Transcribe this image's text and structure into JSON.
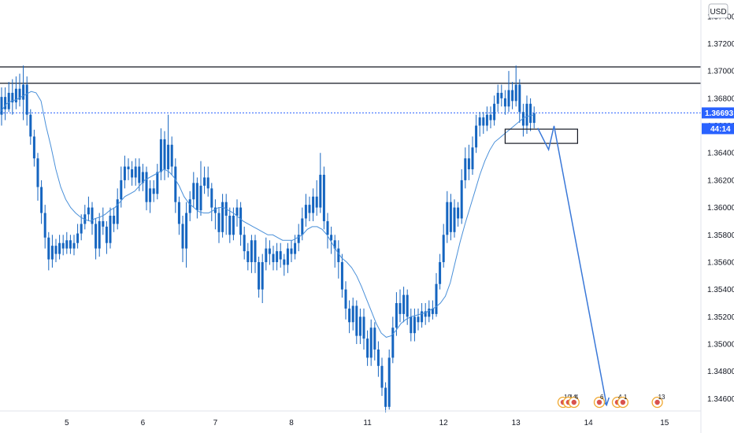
{
  "currency_label": "USD",
  "current_price_label": "1.36693",
  "countdown_label": "44:14",
  "colors": {
    "candle": "#1565c0",
    "ma_line": "#4a90d9",
    "arrow": "#3a78d8",
    "resistance": "#131722",
    "price_line": "#2962ff",
    "background": "#ffffff",
    "axis_text": "#131722",
    "event_badge": "#f0a830"
  },
  "event_badges": [
    {
      "label": "10"
    },
    {
      "label": "14"
    },
    {
      "label": "4"
    },
    {
      "label": "6"
    },
    {
      "label": "4"
    },
    {
      "label": "1"
    },
    {
      "label": "13"
    }
  ],
  "chart_data": {
    "type": "candlestick",
    "ylim": [
      1.3451,
      1.3752
    ],
    "y_ticks": [
      "1.37400",
      "1.37200",
      "1.37000",
      "1.36800",
      "1.36600",
      "1.36400",
      "1.36200",
      "1.36000",
      "1.35800",
      "1.35600",
      "1.35400",
      "1.35200",
      "1.35000",
      "1.34800",
      "1.34600"
    ],
    "y_tick_values": [
      1.374,
      1.372,
      1.37,
      1.368,
      1.366,
      1.364,
      1.362,
      1.36,
      1.358,
      1.356,
      1.354,
      1.352,
      1.35,
      1.348,
      1.346
    ],
    "x_ticks": [
      "5",
      "6",
      "7",
      "8",
      "11",
      "12",
      "13",
      "14",
      "15"
    ],
    "x_tick_index": [
      18,
      39,
      59,
      80,
      101,
      122,
      142,
      162,
      183
    ],
    "bar_count": 200,
    "resistance_levels": [
      1.3703,
      1.3691
    ],
    "current_price": 1.36693,
    "ma_values": [
      1.3671,
      1.3676,
      1.3678,
      1.3679,
      1.3681,
      1.3683,
      1.3685,
      1.3684,
      1.3678,
      1.366,
      1.3645,
      1.3628,
      1.3615,
      1.3606,
      1.36,
      1.3596,
      1.3593,
      1.3591,
      1.359,
      1.3592,
      1.3593,
      1.3595,
      1.3598,
      1.36,
      1.3604,
      1.3608,
      1.361,
      1.3612,
      1.3616,
      1.362,
      1.3622,
      1.3624,
      1.3626,
      1.3628,
      1.3626,
      1.3622,
      1.3616,
      1.3608,
      1.3603,
      1.36,
      1.3597,
      1.3596,
      1.3596,
      1.3598,
      1.36,
      1.36,
      1.3598,
      1.3596,
      1.3593,
      1.359,
      1.3588,
      1.3586,
      1.3584,
      1.3582,
      1.358,
      1.358,
      1.3578,
      1.3576,
      1.3576,
      1.3576,
      1.3578,
      1.358,
      1.3584,
      1.3586,
      1.3586,
      1.3584,
      1.358,
      1.3574,
      1.3568,
      1.3563,
      1.356,
      1.3556,
      1.355,
      1.3542,
      1.3533,
      1.3524,
      1.3515,
      1.3508,
      1.3505,
      1.3506,
      1.351,
      1.3515,
      1.3518,
      1.352,
      1.3521,
      1.3522,
      1.3523,
      1.3525,
      1.3527,
      1.353,
      1.3535,
      1.3545,
      1.356,
      1.3575,
      1.3588,
      1.36,
      1.3612,
      1.3624,
      1.3634,
      1.3642,
      1.3648,
      1.3651,
      1.3654,
      1.3657,
      1.366,
      1.3663,
      1.3666,
      1.3667,
      1.3668
    ],
    "candles": [
      [
        1.3668,
        1.3681,
        1.3688,
        1.366
      ],
      [
        1.3681,
        1.3672,
        1.3688,
        1.3664
      ],
      [
        1.3672,
        1.3684,
        1.3692,
        1.367
      ],
      [
        1.3684,
        1.3677,
        1.3694,
        1.3668
      ],
      [
        1.3677,
        1.3687,
        1.3696,
        1.3672
      ],
      [
        1.3687,
        1.3679,
        1.3698,
        1.3674
      ],
      [
        1.3679,
        1.369,
        1.3704,
        1.3664
      ],
      [
        1.369,
        1.3668,
        1.3696,
        1.366
      ],
      [
        1.3668,
        1.3652,
        1.3672,
        1.3646
      ],
      [
        1.3652,
        1.3636,
        1.3657,
        1.363
      ],
      [
        1.3636,
        1.3615,
        1.364,
        1.3605
      ],
      [
        1.3615,
        1.3596,
        1.362,
        1.3588
      ],
      [
        1.3596,
        1.3578,
        1.3602,
        1.357
      ],
      [
        1.3578,
        1.3562,
        1.3582,
        1.3554
      ],
      [
        1.3562,
        1.3572,
        1.358,
        1.3556
      ],
      [
        1.3572,
        1.3566,
        1.3577,
        1.356
      ],
      [
        1.3566,
        1.3574,
        1.358,
        1.3562
      ],
      [
        1.3574,
        1.357,
        1.358,
        1.3565
      ],
      [
        1.357,
        1.3576,
        1.3582,
        1.3566
      ],
      [
        1.3576,
        1.357,
        1.358,
        1.3566
      ],
      [
        1.357,
        1.3574,
        1.358,
        1.3565
      ],
      [
        1.3574,
        1.3581,
        1.3588,
        1.357
      ],
      [
        1.3581,
        1.3588,
        1.3595,
        1.3576
      ],
      [
        1.3588,
        1.3595,
        1.3602,
        1.3584
      ],
      [
        1.3595,
        1.36,
        1.3608,
        1.359
      ],
      [
        1.36,
        1.3588,
        1.3604,
        1.358
      ],
      [
        1.3588,
        1.357,
        1.3592,
        1.3562
      ],
      [
        1.357,
        1.359,
        1.3596,
        1.3564
      ],
      [
        1.359,
        1.3586,
        1.36,
        1.358
      ],
      [
        1.3586,
        1.3574,
        1.359,
        1.3566
      ],
      [
        1.3574,
        1.3594,
        1.36,
        1.357
      ],
      [
        1.3594,
        1.3588,
        1.36,
        1.3582
      ],
      [
        1.3588,
        1.3606,
        1.3614,
        1.3584
      ],
      [
        1.3606,
        1.362,
        1.363,
        1.36
      ],
      [
        1.362,
        1.363,
        1.3638,
        1.3614
      ],
      [
        1.363,
        1.3628,
        1.3636,
        1.362
      ],
      [
        1.3628,
        1.3622,
        1.3634,
        1.3616
      ],
      [
        1.3622,
        1.363,
        1.3636,
        1.3616
      ],
      [
        1.363,
        1.3618,
        1.3636,
        1.3612
      ],
      [
        1.3618,
        1.3626,
        1.3632,
        1.3612
      ],
      [
        1.3626,
        1.3604,
        1.363,
        1.3598
      ],
      [
        1.3604,
        1.3614,
        1.362,
        1.3596
      ],
      [
        1.3614,
        1.361,
        1.362,
        1.3604
      ],
      [
        1.361,
        1.3626,
        1.3632,
        1.3606
      ],
      [
        1.3626,
        1.365,
        1.3658,
        1.362
      ],
      [
        1.365,
        1.3628,
        1.3656,
        1.362
      ],
      [
        1.3628,
        1.3646,
        1.3668,
        1.3622
      ],
      [
        1.3646,
        1.363,
        1.3652,
        1.3624
      ],
      [
        1.363,
        1.3604,
        1.3636,
        1.3596
      ],
      [
        1.3604,
        1.3588,
        1.3608,
        1.358
      ],
      [
        1.3588,
        1.357,
        1.3594,
        1.356
      ],
      [
        1.357,
        1.3596,
        1.3604,
        1.3556
      ],
      [
        1.3596,
        1.3606,
        1.3612,
        1.359
      ],
      [
        1.3606,
        1.3618,
        1.3626,
        1.36
      ],
      [
        1.3618,
        1.3598,
        1.3622,
        1.3592
      ],
      [
        1.3598,
        1.3616,
        1.3634,
        1.3594
      ],
      [
        1.3616,
        1.3622,
        1.363,
        1.361
      ],
      [
        1.3622,
        1.3614,
        1.363,
        1.3608
      ],
      [
        1.3614,
        1.36,
        1.3618,
        1.359
      ],
      [
        1.36,
        1.3596,
        1.3606,
        1.3584
      ],
      [
        1.3596,
        1.3582,
        1.36,
        1.3574
      ],
      [
        1.3582,
        1.3604,
        1.361,
        1.3578
      ],
      [
        1.3604,
        1.3594,
        1.361,
        1.358
      ],
      [
        1.3594,
        1.358,
        1.36,
        1.3574
      ],
      [
        1.358,
        1.3594,
        1.36,
        1.3576
      ],
      [
        1.3594,
        1.36,
        1.3606,
        1.3586
      ],
      [
        1.36,
        1.358,
        1.3604,
        1.3572
      ],
      [
        1.358,
        1.3568,
        1.3586,
        1.3562
      ],
      [
        1.3568,
        1.356,
        1.3574,
        1.3554
      ],
      [
        1.356,
        1.3576,
        1.358,
        1.3552
      ],
      [
        1.3576,
        1.356,
        1.358,
        1.3552
      ],
      [
        1.356,
        1.354,
        1.3564,
        1.3534
      ],
      [
        1.354,
        1.356,
        1.3566,
        1.353
      ],
      [
        1.356,
        1.357,
        1.3578,
        1.3554
      ],
      [
        1.357,
        1.3566,
        1.3576,
        1.3558
      ],
      [
        1.3566,
        1.356,
        1.3572,
        1.3554
      ],
      [
        1.356,
        1.3568,
        1.3574,
        1.3554
      ],
      [
        1.3568,
        1.3562,
        1.3574,
        1.3556
      ],
      [
        1.3562,
        1.3558,
        1.3566,
        1.355
      ],
      [
        1.3558,
        1.357,
        1.3574,
        1.3552
      ],
      [
        1.357,
        1.3566,
        1.3576,
        1.356
      ],
      [
        1.3566,
        1.3574,
        1.358,
        1.3562
      ],
      [
        1.3574,
        1.358,
        1.3588,
        1.3568
      ],
      [
        1.358,
        1.3592,
        1.36,
        1.3576
      ],
      [
        1.3592,
        1.3602,
        1.361,
        1.3586
      ],
      [
        1.3602,
        1.3596,
        1.3608,
        1.359
      ],
      [
        1.3596,
        1.3608,
        1.3614,
        1.359
      ],
      [
        1.3608,
        1.36,
        1.362,
        1.3594
      ],
      [
        1.36,
        1.3624,
        1.364,
        1.3596
      ],
      [
        1.3624,
        1.359,
        1.363,
        1.3584
      ],
      [
        1.359,
        1.358,
        1.3596,
        1.357
      ],
      [
        1.358,
        1.3576,
        1.3586,
        1.3566
      ],
      [
        1.3576,
        1.357,
        1.358,
        1.3556
      ],
      [
        1.357,
        1.356,
        1.3576,
        1.3548
      ],
      [
        1.356,
        1.354,
        1.3566,
        1.3534
      ],
      [
        1.354,
        1.3526,
        1.3546,
        1.3518
      ],
      [
        1.3526,
        1.3516,
        1.3532,
        1.3508
      ],
      [
        1.3516,
        1.3528,
        1.3534,
        1.351
      ],
      [
        1.3528,
        1.3506,
        1.3532,
        1.35
      ],
      [
        1.3506,
        1.352,
        1.3526,
        1.35
      ],
      [
        1.352,
        1.3504,
        1.3526,
        1.3496
      ],
      [
        1.3504,
        1.349,
        1.351,
        1.3484
      ],
      [
        1.349,
        1.3512,
        1.3518,
        1.3484
      ],
      [
        1.3512,
        1.3496,
        1.3516,
        1.3488
      ],
      [
        1.3496,
        1.3484,
        1.3502,
        1.3476
      ],
      [
        1.3484,
        1.3468,
        1.349,
        1.3462
      ],
      [
        1.3468,
        1.3454,
        1.3472,
        1.345
      ],
      [
        1.3454,
        1.349,
        1.3496,
        1.3452
      ],
      [
        1.349,
        1.3512,
        1.352,
        1.3486
      ],
      [
        1.3512,
        1.353,
        1.3538,
        1.3506
      ],
      [
        1.353,
        1.3522,
        1.354,
        1.3516
      ],
      [
        1.3522,
        1.3536,
        1.3542,
        1.3516
      ],
      [
        1.3536,
        1.352,
        1.354,
        1.3514
      ],
      [
        1.352,
        1.3508,
        1.3526,
        1.3502
      ],
      [
        1.3508,
        1.352,
        1.3526,
        1.3502
      ],
      [
        1.352,
        1.3516,
        1.3526,
        1.351
      ],
      [
        1.3516,
        1.3524,
        1.353,
        1.3512
      ],
      [
        1.3524,
        1.352,
        1.353,
        1.3514
      ],
      [
        1.352,
        1.3526,
        1.3532,
        1.3516
      ],
      [
        1.3526,
        1.3522,
        1.3532,
        1.3518
      ],
      [
        1.3522,
        1.3544,
        1.3552,
        1.352
      ],
      [
        1.3544,
        1.356,
        1.3566,
        1.354
      ],
      [
        1.356,
        1.358,
        1.3588,
        1.3556
      ],
      [
        1.358,
        1.3604,
        1.3612,
        1.3574
      ],
      [
        1.3604,
        1.3582,
        1.361,
        1.3576
      ],
      [
        1.3582,
        1.36,
        1.3606,
        1.3578
      ],
      [
        1.36,
        1.3592,
        1.3604,
        1.3586
      ],
      [
        1.3592,
        1.362,
        1.3628,
        1.3588
      ],
      [
        1.362,
        1.3636,
        1.3644,
        1.3614
      ],
      [
        1.3636,
        1.3628,
        1.3646,
        1.362
      ],
      [
        1.3628,
        1.3644,
        1.3652,
        1.3624
      ],
      [
        1.3644,
        1.366,
        1.3668,
        1.364
      ],
      [
        1.366,
        1.3666,
        1.367,
        1.3652
      ],
      [
        1.3666,
        1.366,
        1.367,
        1.3654
      ],
      [
        1.366,
        1.3668,
        1.3674,
        1.3656
      ],
      [
        1.3668,
        1.3664,
        1.3674,
        1.3658
      ],
      [
        1.3664,
        1.3676,
        1.3682,
        1.366
      ],
      [
        1.3676,
        1.3684,
        1.369,
        1.367
      ],
      [
        1.3684,
        1.368,
        1.369,
        1.3674
      ],
      [
        1.368,
        1.3674,
        1.3686,
        1.3668
      ],
      [
        1.3674,
        1.3686,
        1.37,
        1.367
      ],
      [
        1.3686,
        1.3678,
        1.3692,
        1.3672
      ],
      [
        1.3678,
        1.369,
        1.3704,
        1.3674
      ],
      [
        1.369,
        1.367,
        1.3694,
        1.3662
      ],
      [
        1.367,
        1.366,
        1.3676,
        1.3652
      ],
      [
        1.366,
        1.3676,
        1.3682,
        1.3654
      ],
      [
        1.3676,
        1.3662,
        1.368,
        1.3656
      ],
      [
        1.3662,
        1.3669,
        1.3674,
        1.3658
      ]
    ],
    "projection": [
      {
        "bar": 148,
        "price": 1.36582
      },
      {
        "bar": 151,
        "price": 1.36424
      },
      {
        "bar": 152.5,
        "price": 1.36598
      },
      {
        "bar": 167,
        "price": 1.34553
      }
    ],
    "box": {
      "bar_start": 139,
      "bar_end": 159,
      "price_top": 1.36574,
      "price_bottom": 1.3647
    },
    "event_positions": [
      155,
      156.5,
      158,
      165,
      170,
      171.5,
      181
    ]
  }
}
